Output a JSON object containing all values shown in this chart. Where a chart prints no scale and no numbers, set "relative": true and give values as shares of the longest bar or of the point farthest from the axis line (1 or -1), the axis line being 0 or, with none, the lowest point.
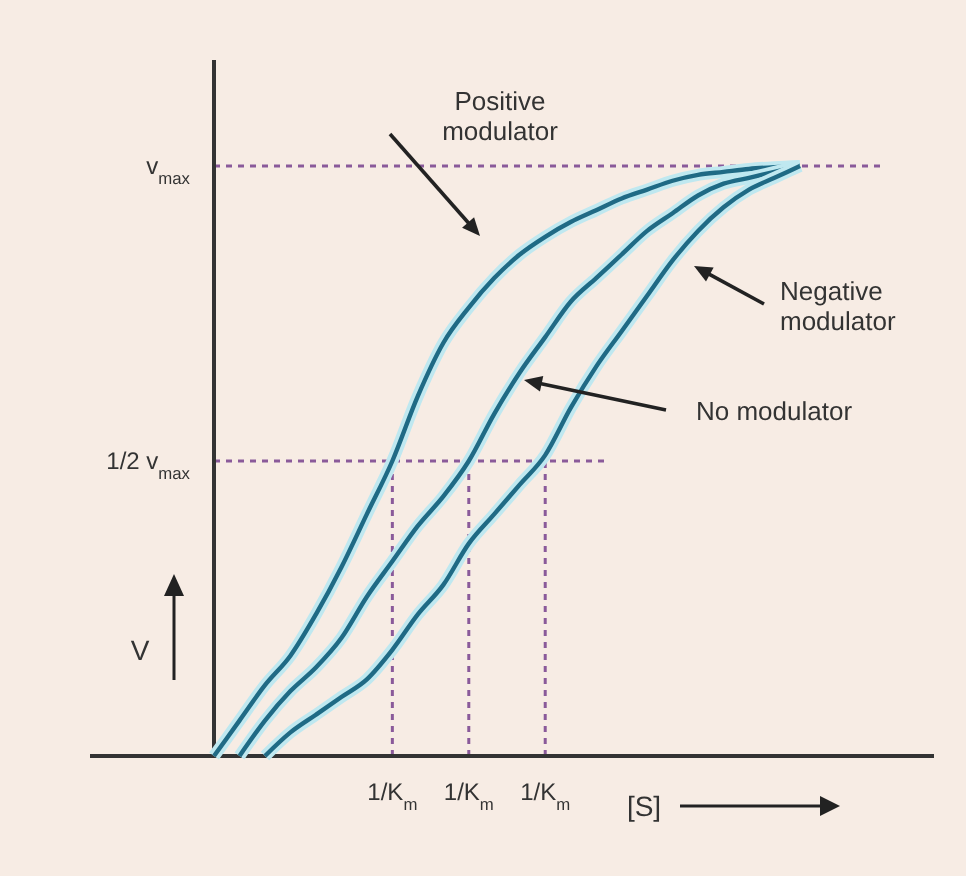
{
  "chart_data": {
    "type": "line",
    "relative": true,
    "xlabel": "[S]",
    "ylabel": "V",
    "categories": [
      null,
      null,
      null,
      null,
      null,
      null,
      null,
      "1/K$_{m}$",
      null,
      null,
      "1/K$_{m}$",
      null,
      null,
      "1/K$_{m}$",
      null,
      null,
      null,
      null,
      null,
      null,
      null,
      null,
      null,
      null
    ],
    "series": [
      {
        "color": "#1f6a85",
        "values": [
          0,
          0.06,
          0.12,
          0.17,
          0.24,
          0.32,
          0.41,
          0.5,
          0.61,
          0.7,
          0.76,
          0.81,
          0.85,
          0.88,
          0.905,
          0.925,
          0.945,
          0.96,
          0.975,
          0.985,
          0.99,
          0.995,
          0.998,
          1
        ]
      },
      {
        "color": "#1f6a85",
        "values": [
          null,
          0,
          0.06,
          0.11,
          0.15,
          0.2,
          0.27,
          0.33,
          0.39,
          0.44,
          0.5,
          0.58,
          0.65,
          0.71,
          0.77,
          0.81,
          0.85,
          0.89,
          0.92,
          0.95,
          0.97,
          0.98,
          0.99,
          1
        ]
      },
      {
        "color": "#1f6a85",
        "values": [
          null,
          null,
          0,
          0.04,
          0.07,
          0.1,
          0.13,
          0.18,
          0.24,
          0.29,
          0.36,
          0.41,
          0.46,
          0.51,
          0.59,
          0.66,
          0.72,
          0.78,
          0.84,
          0.89,
          0.93,
          0.96,
          0.98,
          1
        ]
      }
    ],
    "ref_lines": [
      {
        "axis": "y",
        "value": 1,
        "label": "v$_{max}$",
        "color": "#8a5a9a",
        "line_style": "dashed"
      },
      {
        "axis": "y",
        "value": 0.5,
        "label": "1/2 v$_{max}$",
        "color": "#8a5a9a",
        "line_style": "dashed"
      }
    ],
    "annotations": [
      "Positive modulator",
      "No modulator",
      "Negative modulator"
    ],
    "line_style": "solid",
    "marker": "none"
  }
}
